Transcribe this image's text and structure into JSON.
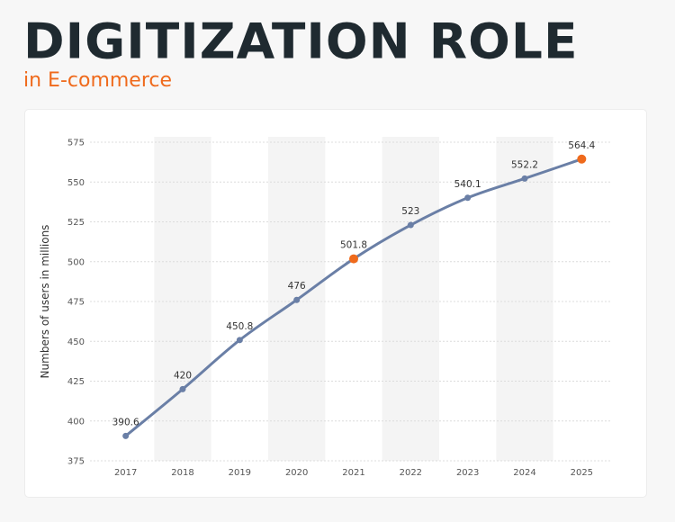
{
  "header": {
    "title": "DIGITIZATION ROLE",
    "subtitle": "in E-commerce"
  },
  "colors": {
    "title": "#1f2a30",
    "accent": "#ef6a1c",
    "line": "#6a7fa6",
    "band": "#f4f4f4",
    "grid": "#dcdcdc"
  },
  "chart_data": {
    "type": "line",
    "title": "",
    "xlabel": "",
    "ylabel": "Numbers of users in millions",
    "categories": [
      "2017",
      "2018",
      "2019",
      "2020",
      "2021",
      "2022",
      "2023",
      "2024",
      "2025"
    ],
    "series": [
      {
        "values": [
          390.6,
          420,
          450.8,
          476,
          501.8,
          523,
          540.1,
          552.2,
          564.4
        ],
        "labels": [
          "390.6",
          "420",
          "450.8",
          "476",
          "501.8",
          "523",
          "540.1",
          "552.2",
          "564.4"
        ]
      }
    ],
    "highlighted_points": [
      "2021",
      "2025"
    ],
    "yticks": [
      375,
      400,
      425,
      450,
      475,
      500,
      525,
      550,
      575
    ],
    "ylim": [
      375,
      575
    ],
    "grid": true
  }
}
